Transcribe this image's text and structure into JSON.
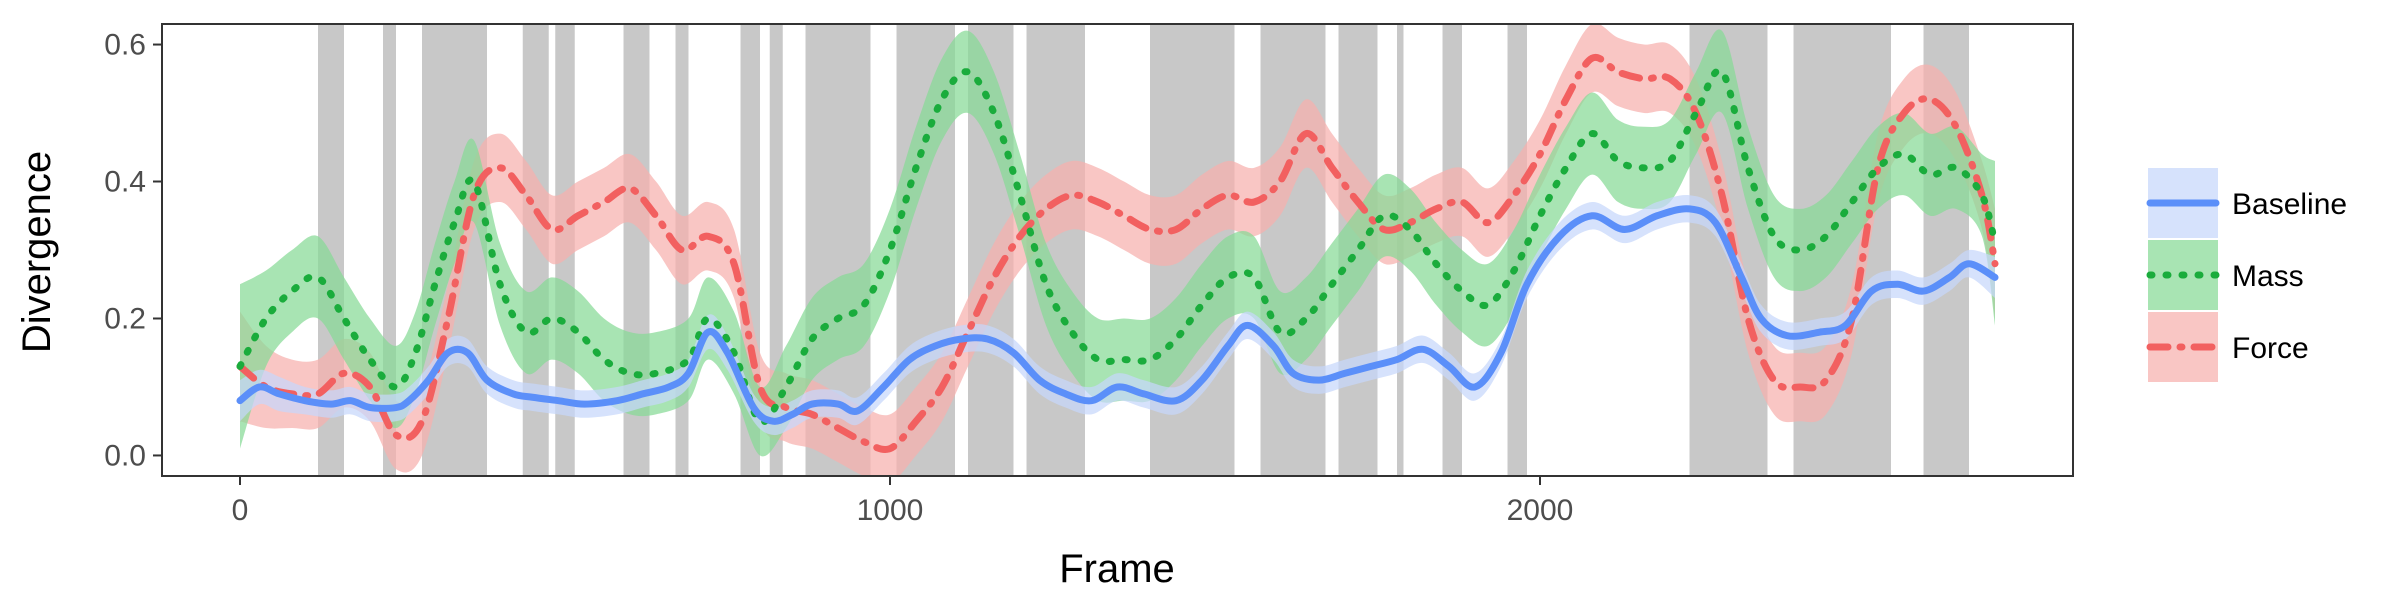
{
  "chart_data": {
    "type": "line",
    "title": "",
    "xlabel": "Frame",
    "ylabel": "Divergence",
    "xlim": [
      -120,
      2820
    ],
    "ylim": [
      -0.03,
      0.63
    ],
    "xticks": [
      0,
      1000,
      2000
    ],
    "xtick_labels": [
      "0",
      "1000",
      "2000"
    ],
    "yticks": [
      0.0,
      0.2,
      0.4,
      0.6
    ],
    "ytick_labels": [
      "0.0",
      "0.2",
      "0.4",
      "0.6"
    ],
    "grid": false,
    "legend_position": "right",
    "shaded_frame_intervals": [
      [
        120,
        160
      ],
      [
        220,
        240
      ],
      [
        280,
        380
      ],
      [
        435,
        475
      ],
      [
        485,
        515
      ],
      [
        590,
        630
      ],
      [
        670,
        690
      ],
      [
        770,
        800
      ],
      [
        815,
        835
      ],
      [
        870,
        970
      ],
      [
        1010,
        1100
      ],
      [
        1120,
        1190
      ],
      [
        1210,
        1300
      ],
      [
        1400,
        1530
      ],
      [
        1570,
        1670
      ],
      [
        1690,
        1750
      ],
      [
        1780,
        1790
      ],
      [
        1850,
        1880
      ],
      [
        1950,
        1980
      ],
      [
        2230,
        2350
      ],
      [
        2390,
        2540
      ],
      [
        2590,
        2660
      ]
    ],
    "series": [
      {
        "name": "Baseline",
        "line_style": "solid",
        "color": "#5b8ff9",
        "band_color": "#c6d7fb",
        "x": [
          0,
          30,
          60,
          100,
          140,
          170,
          200,
          240,
          260,
          290,
          320,
          350,
          380,
          420,
          450,
          490,
          530,
          580,
          620,
          660,
          690,
          720,
          750,
          790,
          820,
          850,
          880,
          920,
          950,
          990,
          1030,
          1070,
          1110,
          1150,
          1190,
          1230,
          1270,
          1310,
          1350,
          1390,
          1440,
          1480,
          1520,
          1550,
          1590,
          1620,
          1660,
          1700,
          1740,
          1780,
          1820,
          1860,
          1900,
          1940,
          1980,
          2030,
          2080,
          2130,
          2180,
          2230,
          2270,
          2310,
          2340,
          2380,
          2430,
          2470,
          2510,
          2550,
          2590,
          2630,
          2660,
          2700
        ],
        "y": [
          0.08,
          0.1,
          0.09,
          0.08,
          0.075,
          0.08,
          0.07,
          0.07,
          0.08,
          0.11,
          0.15,
          0.15,
          0.11,
          0.09,
          0.085,
          0.08,
          0.075,
          0.08,
          0.09,
          0.1,
          0.12,
          0.18,
          0.15,
          0.07,
          0.05,
          0.06,
          0.075,
          0.075,
          0.065,
          0.1,
          0.14,
          0.16,
          0.17,
          0.17,
          0.15,
          0.11,
          0.09,
          0.08,
          0.1,
          0.09,
          0.08,
          0.11,
          0.16,
          0.19,
          0.16,
          0.12,
          0.11,
          0.12,
          0.13,
          0.14,
          0.155,
          0.13,
          0.1,
          0.15,
          0.25,
          0.32,
          0.35,
          0.33,
          0.35,
          0.36,
          0.34,
          0.26,
          0.2,
          0.175,
          0.18,
          0.19,
          0.24,
          0.25,
          0.24,
          0.26,
          0.28,
          0.26
        ],
        "band_halfwidth": [
          0.03,
          0.025,
          0.025,
          0.02,
          0.02,
          0.02,
          0.02,
          0.02,
          0.02,
          0.02,
          0.02,
          0.02,
          0.02,
          0.02,
          0.02,
          0.02,
          0.02,
          0.02,
          0.02,
          0.02,
          0.02,
          0.025,
          0.025,
          0.02,
          0.02,
          0.02,
          0.02,
          0.02,
          0.02,
          0.02,
          0.02,
          0.02,
          0.02,
          0.02,
          0.02,
          0.02,
          0.02,
          0.02,
          0.02,
          0.02,
          0.02,
          0.02,
          0.02,
          0.02,
          0.02,
          0.02,
          0.02,
          0.02,
          0.02,
          0.02,
          0.02,
          0.02,
          0.02,
          0.02,
          0.02,
          0.02,
          0.02,
          0.02,
          0.02,
          0.02,
          0.02,
          0.02,
          0.02,
          0.02,
          0.02,
          0.02,
          0.02,
          0.02,
          0.02,
          0.02,
          0.02,
          0.03
        ]
      },
      {
        "name": "Mass",
        "line_style": "dotted",
        "color": "#1aac3c",
        "band_color": "#86d996",
        "x": [
          0,
          40,
          80,
          120,
          160,
          200,
          240,
          270,
          300,
          330,
          360,
          400,
          440,
          480,
          520,
          560,
          600,
          640,
          690,
          720,
          760,
          800,
          840,
          880,
          920,
          960,
          1000,
          1040,
          1080,
          1120,
          1160,
          1200,
          1240,
          1280,
          1320,
          1360,
          1400,
          1440,
          1480,
          1520,
          1560,
          1600,
          1640,
          1680,
          1720,
          1760,
          1800,
          1840,
          1880,
          1920,
          1960,
          2000,
          2040,
          2080,
          2120,
          2160,
          2200,
          2240,
          2280,
          2320,
          2360,
          2400,
          2440,
          2480,
          2520,
          2560,
          2600,
          2640,
          2680,
          2700
        ],
        "y": [
          0.13,
          0.2,
          0.24,
          0.26,
          0.2,
          0.14,
          0.1,
          0.15,
          0.25,
          0.34,
          0.4,
          0.25,
          0.18,
          0.2,
          0.18,
          0.14,
          0.12,
          0.12,
          0.14,
          0.2,
          0.15,
          0.05,
          0.1,
          0.17,
          0.2,
          0.22,
          0.3,
          0.42,
          0.52,
          0.56,
          0.5,
          0.38,
          0.25,
          0.18,
          0.14,
          0.14,
          0.14,
          0.17,
          0.22,
          0.26,
          0.26,
          0.18,
          0.2,
          0.25,
          0.3,
          0.35,
          0.33,
          0.28,
          0.24,
          0.22,
          0.27,
          0.35,
          0.42,
          0.47,
          0.43,
          0.42,
          0.43,
          0.5,
          0.56,
          0.42,
          0.32,
          0.3,
          0.32,
          0.37,
          0.42,
          0.44,
          0.41,
          0.42,
          0.38,
          0.31
        ],
        "band_halfwidth": [
          0.12,
          0.07,
          0.06,
          0.06,
          0.06,
          0.06,
          0.06,
          0.06,
          0.06,
          0.06,
          0.06,
          0.06,
          0.06,
          0.06,
          0.06,
          0.06,
          0.06,
          0.06,
          0.06,
          0.06,
          0.06,
          0.05,
          0.06,
          0.06,
          0.06,
          0.06,
          0.06,
          0.06,
          0.06,
          0.06,
          0.06,
          0.06,
          0.06,
          0.06,
          0.06,
          0.06,
          0.06,
          0.06,
          0.06,
          0.06,
          0.06,
          0.06,
          0.06,
          0.06,
          0.06,
          0.06,
          0.06,
          0.06,
          0.06,
          0.06,
          0.06,
          0.06,
          0.06,
          0.06,
          0.06,
          0.06,
          0.06,
          0.06,
          0.06,
          0.06,
          0.06,
          0.06,
          0.06,
          0.06,
          0.06,
          0.06,
          0.06,
          0.06,
          0.06,
          0.12
        ]
      },
      {
        "name": "Force",
        "line_style": "dotdash",
        "color": "#f26060",
        "band_color": "#f7b0ad",
        "x": [
          0,
          40,
          80,
          120,
          160,
          200,
          240,
          280,
          320,
          360,
          400,
          440,
          480,
          520,
          560,
          600,
          640,
          680,
          720,
          760,
          800,
          840,
          880,
          920,
          960,
          1000,
          1040,
          1080,
          1120,
          1160,
          1200,
          1240,
          1280,
          1320,
          1360,
          1400,
          1440,
          1480,
          1520,
          1560,
          1600,
          1640,
          1680,
          1720,
          1760,
          1800,
          1840,
          1880,
          1920,
          1960,
          2000,
          2040,
          2080,
          2120,
          2160,
          2200,
          2240,
          2280,
          2320,
          2360,
          2400,
          2440,
          2480,
          2520,
          2560,
          2600,
          2640,
          2680,
          2700
        ],
        "y": [
          0.13,
          0.1,
          0.09,
          0.09,
          0.12,
          0.1,
          0.03,
          0.05,
          0.2,
          0.38,
          0.42,
          0.38,
          0.33,
          0.35,
          0.37,
          0.39,
          0.35,
          0.3,
          0.32,
          0.28,
          0.1,
          0.07,
          0.06,
          0.04,
          0.02,
          0.01,
          0.05,
          0.1,
          0.18,
          0.26,
          0.32,
          0.36,
          0.38,
          0.37,
          0.35,
          0.33,
          0.33,
          0.36,
          0.38,
          0.37,
          0.4,
          0.47,
          0.42,
          0.37,
          0.33,
          0.34,
          0.36,
          0.37,
          0.34,
          0.38,
          0.44,
          0.52,
          0.58,
          0.56,
          0.55,
          0.55,
          0.5,
          0.38,
          0.2,
          0.11,
          0.1,
          0.11,
          0.2,
          0.42,
          0.5,
          0.52,
          0.48,
          0.38,
          0.28
        ],
        "band_halfwidth": [
          0.08,
          0.06,
          0.05,
          0.05,
          0.05,
          0.05,
          0.05,
          0.05,
          0.05,
          0.05,
          0.05,
          0.05,
          0.05,
          0.05,
          0.05,
          0.05,
          0.05,
          0.05,
          0.05,
          0.05,
          0.05,
          0.05,
          0.05,
          0.05,
          0.05,
          0.05,
          0.05,
          0.05,
          0.05,
          0.05,
          0.05,
          0.05,
          0.05,
          0.05,
          0.05,
          0.05,
          0.05,
          0.05,
          0.05,
          0.05,
          0.05,
          0.05,
          0.05,
          0.05,
          0.05,
          0.05,
          0.05,
          0.05,
          0.05,
          0.05,
          0.05,
          0.05,
          0.05,
          0.05,
          0.05,
          0.05,
          0.05,
          0.05,
          0.05,
          0.05,
          0.05,
          0.05,
          0.05,
          0.05,
          0.05,
          0.05,
          0.05,
          0.05,
          0.08
        ]
      }
    ]
  },
  "colors": {
    "shade": "#c8c8c8",
    "panel_border": "#333333",
    "tick": "#333333"
  }
}
